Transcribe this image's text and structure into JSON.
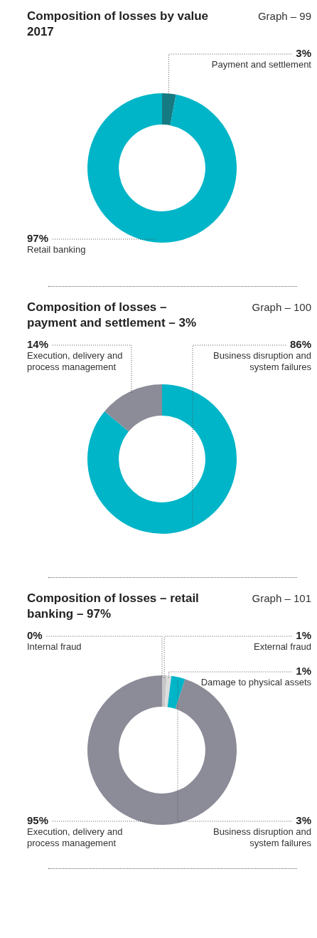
{
  "chart_data": [
    {
      "type": "donut",
      "title": "Composition of losses by value 2017",
      "annotations": [
        "Graph – 99"
      ],
      "categories": [
        "Payment and settlement",
        "Retail banking"
      ],
      "values": [
        3,
        97
      ],
      "value_labels": [
        "3%",
        "97%"
      ],
      "colors": [
        "#167a82",
        "#00b5c8"
      ],
      "legend": false
    },
    {
      "type": "donut",
      "title": "Composition of losses – payment and settlement – 3%",
      "annotations": [
        "Graph – 100"
      ],
      "categories": [
        "Business disruption and system failures",
        "Execution, delivery and process management"
      ],
      "values": [
        86,
        14
      ],
      "value_labels": [
        "86%",
        "14%"
      ],
      "colors": [
        "#00b5c8",
        "#8c8c98"
      ],
      "legend": false
    },
    {
      "type": "donut",
      "title": "Composition of losses – retail banking – 97%",
      "annotations": [
        "Graph – 101"
      ],
      "categories": [
        "Internal fraud",
        "External fraud",
        "Damage to physical assets",
        "Business disruption and system failures",
        "Execution, delivery and process management"
      ],
      "values": [
        0,
        1,
        1,
        3,
        95
      ],
      "value_labels": [
        "0%",
        "1%",
        "1%",
        "3%",
        "95%"
      ],
      "colors": [
        "#1a5566",
        "#c8c6c8",
        "#dcdcdc",
        "#00b5c8",
        "#8c8c98"
      ],
      "legend": false
    }
  ]
}
